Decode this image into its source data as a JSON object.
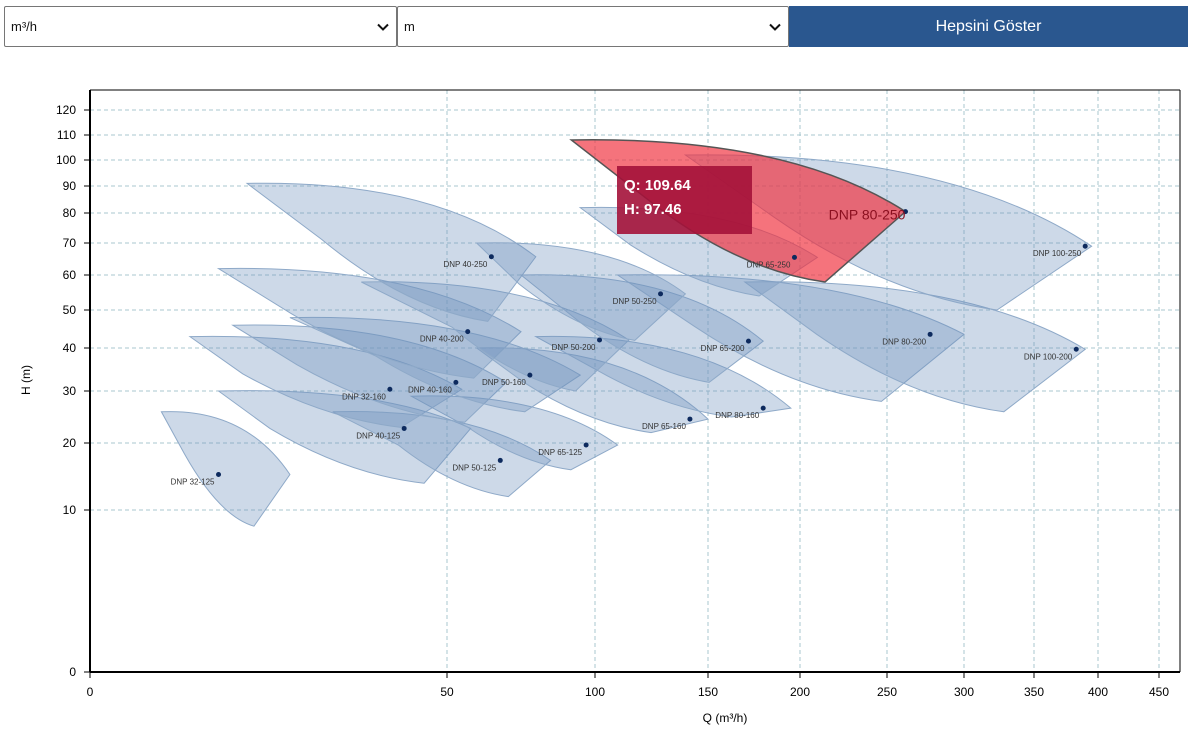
{
  "controls": {
    "flow_unit": "m³/h",
    "head_unit": "m",
    "show_all_label": "Hepsini Göster"
  },
  "chart_data": {
    "type": "pump-selection-chart",
    "xlabel": "Q (m³/h)",
    "ylabel": "H (m)",
    "x_ticks": [
      0,
      50,
      100,
      150,
      200,
      250,
      300,
      350,
      400,
      450
    ],
    "y_ticks": [
      0,
      10,
      20,
      30,
      40,
      50,
      60,
      70,
      80,
      90,
      100,
      110,
      120
    ],
    "x_scale": "piecewise",
    "y_scale": "piecewise",
    "pumps": [
      {
        "name": "DNP 32-125",
        "q": 18,
        "h": 15.3,
        "ql": 10,
        "qr": 28,
        "ht": 26,
        "hb": 9,
        "dip": 3
      },
      {
        "name": "DNP 40-125",
        "q": 44,
        "h": 22.8,
        "ql": 18,
        "qr": 58,
        "ht": 30,
        "hb": 14,
        "dip": 3
      },
      {
        "name": "DNP 50-125",
        "q": 68,
        "h": 17.4,
        "ql": 34,
        "qr": 85,
        "ht": 26,
        "hb": 12,
        "dip": 3
      },
      {
        "name": "DNP 65-125",
        "q": 97,
        "h": 19.7,
        "ql": 45,
        "qr": 110,
        "ht": 29,
        "hb": 16,
        "dip": 3
      },
      {
        "name": "DNP 32-160",
        "q": 42,
        "h": 30.4,
        "ql": 14,
        "qr": 55,
        "ht": 43,
        "hb": 23,
        "dip": 4
      },
      {
        "name": "DNP 40-160",
        "q": 53,
        "h": 32.0,
        "ql": 20,
        "qr": 70,
        "ht": 46,
        "hb": 24,
        "dip": 4
      },
      {
        "name": "DNP 50-160",
        "q": 78,
        "h": 33.7,
        "ql": 28,
        "qr": 95,
        "ht": 48,
        "hb": 26,
        "dip": 4
      },
      {
        "name": "DNP 65-160",
        "q": 142,
        "h": 24.6,
        "ql": 60,
        "qr": 150,
        "ht": 40,
        "hb": 22,
        "dip": 4
      },
      {
        "name": "DNP 80-160",
        "q": 180,
        "h": 26.7,
        "ql": 80,
        "qr": 195,
        "ht": 43,
        "hb": 25,
        "dip": 4
      },
      {
        "name": "DNP 40-200",
        "q": 57,
        "h": 44.3,
        "ql": 18,
        "qr": 75,
        "ht": 62,
        "hb": 33,
        "dip": 4
      },
      {
        "name": "DNP 50-200",
        "q": 102,
        "h": 42.1,
        "ql": 38,
        "qr": 115,
        "ht": 58,
        "hb": 30,
        "dip": 5
      },
      {
        "name": "DNP 65-200",
        "q": 172,
        "h": 41.8,
        "ql": 75,
        "qr": 180,
        "ht": 60,
        "hb": 32,
        "dip": 5
      },
      {
        "name": "DNP 80-200",
        "q": 278,
        "h": 43.6,
        "ql": 110,
        "qr": 300,
        "ht": 60,
        "hb": 28,
        "dip": 5
      },
      {
        "name": "DNP 100-200",
        "q": 383,
        "h": 39.7,
        "ql": 170,
        "qr": 390,
        "ht": 58,
        "hb": 26,
        "dip": 5
      },
      {
        "name": "DNP 40-250",
        "q": 65,
        "h": 65.7,
        "ql": 22,
        "qr": 80,
        "ht": 91,
        "hb": 47,
        "dip": 5
      },
      {
        "name": "DNP 50-250",
        "q": 129,
        "h": 54.6,
        "ql": 60,
        "qr": 140,
        "ht": 70,
        "hb": 42,
        "dip": 5
      },
      {
        "name": "DNP 65-250",
        "q": 197,
        "h": 65.5,
        "ql": 95,
        "qr": 210,
        "ht": 82,
        "hb": 54,
        "dip": 5
      },
      {
        "name": "DNP 100-250",
        "q": 390,
        "h": 69.0,
        "ql": 140,
        "qr": 395,
        "ht": 102,
        "hb": 50,
        "dip": 6
      }
    ],
    "selected": {
      "name": "DNP 80-250",
      "q": 262,
      "h": 80.5,
      "ql": 92,
      "qr": 262,
      "ht": 108,
      "hb": 58,
      "dip": 4
    },
    "tooltip": {
      "q_text": "Q: 109.64",
      "h_text": "H: 97.46"
    },
    "colors": {
      "envelope_fill": "#6f93bd",
      "envelope_stroke": "#8ea9c8",
      "selected_fill": "#f0303e",
      "tooltip_bg": "#a4123a",
      "point": "#0d2a5e",
      "grid": "#a8c7cf"
    }
  }
}
